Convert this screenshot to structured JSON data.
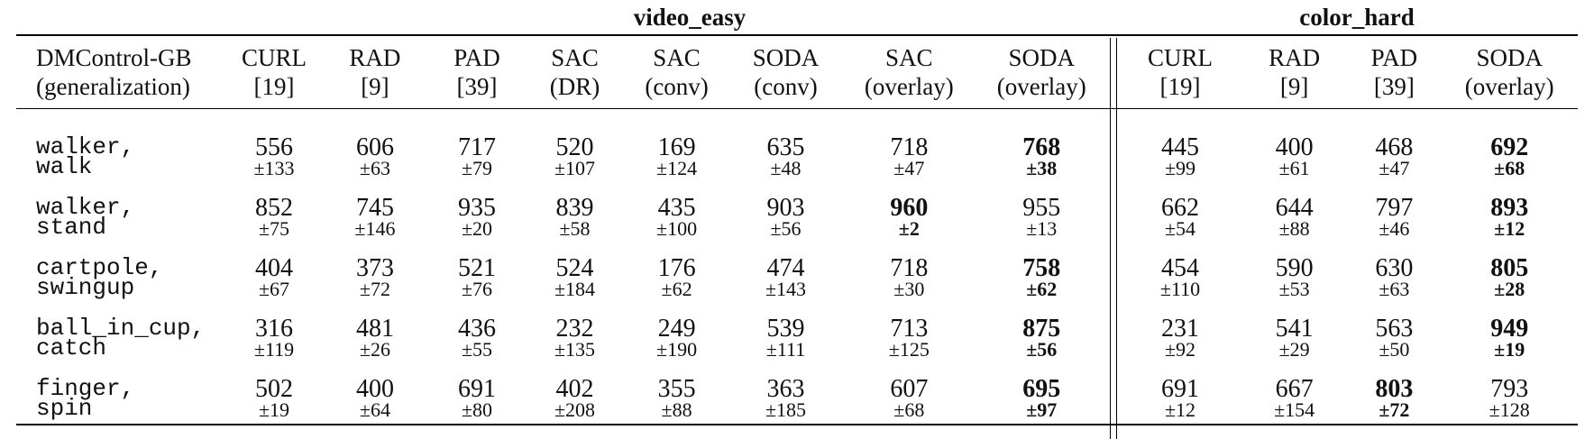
{
  "groups": {
    "video_easy": "video_easy",
    "color_hard": "color_hard"
  },
  "header": {
    "first_line1": "DMControl-GB",
    "first_line2": "(generalization)",
    "cols": [
      {
        "l1": "CURL",
        "l2": "[19]"
      },
      {
        "l1": "RAD",
        "l2": "[9]"
      },
      {
        "l1": "PAD",
        "l2": "[39]"
      },
      {
        "l1": "SAC",
        "l2": "(DR)"
      },
      {
        "l1": "SAC",
        "l2": "(conv)"
      },
      {
        "l1": "SODA",
        "l2": "(conv)"
      },
      {
        "l1": "SAC",
        "l2": "(overlay)"
      },
      {
        "l1": "SODA",
        "l2": "(overlay)"
      },
      {
        "l1": "CURL",
        "l2": "[19]"
      },
      {
        "l1": "RAD",
        "l2": "[9]"
      },
      {
        "l1": "PAD",
        "l2": "[39]"
      },
      {
        "l1": "SODA",
        "l2": "(overlay)"
      }
    ]
  },
  "rows": [
    {
      "task1": "walker,",
      "task2": "walk",
      "cells": [
        {
          "m": "556",
          "s": "±133"
        },
        {
          "m": "606",
          "s": "±63"
        },
        {
          "m": "717",
          "s": "±79"
        },
        {
          "m": "520",
          "s": "±107"
        },
        {
          "m": "169",
          "s": "±124"
        },
        {
          "m": "635",
          "s": "±48"
        },
        {
          "m": "718",
          "s": "±47"
        },
        {
          "m": "768",
          "s": "±38",
          "best": true
        },
        {
          "m": "445",
          "s": "±99"
        },
        {
          "m": "400",
          "s": "±61"
        },
        {
          "m": "468",
          "s": "±47"
        },
        {
          "m": "692",
          "s": "±68",
          "best": true
        }
      ]
    },
    {
      "task1": "walker,",
      "task2": "stand",
      "cells": [
        {
          "m": "852",
          "s": "±75"
        },
        {
          "m": "745",
          "s": "±146"
        },
        {
          "m": "935",
          "s": "±20"
        },
        {
          "m": "839",
          "s": "±58"
        },
        {
          "m": "435",
          "s": "±100"
        },
        {
          "m": "903",
          "s": "±56"
        },
        {
          "m": "960",
          "s": "±2",
          "best": true
        },
        {
          "m": "955",
          "s": "±13"
        },
        {
          "m": "662",
          "s": "±54"
        },
        {
          "m": "644",
          "s": "±88"
        },
        {
          "m": "797",
          "s": "±46"
        },
        {
          "m": "893",
          "s": "±12",
          "best": true
        }
      ]
    },
    {
      "task1": "cartpole,",
      "task2": "swingup",
      "cells": [
        {
          "m": "404",
          "s": "±67"
        },
        {
          "m": "373",
          "s": "±72"
        },
        {
          "m": "521",
          "s": "±76"
        },
        {
          "m": "524",
          "s": "±184"
        },
        {
          "m": "176",
          "s": "±62"
        },
        {
          "m": "474",
          "s": "±143"
        },
        {
          "m": "718",
          "s": "±30"
        },
        {
          "m": "758",
          "s": "±62",
          "best": true
        },
        {
          "m": "454",
          "s": "±110"
        },
        {
          "m": "590",
          "s": "±53"
        },
        {
          "m": "630",
          "s": "±63"
        },
        {
          "m": "805",
          "s": "±28",
          "best": true
        }
      ]
    },
    {
      "task1": "ball_in_cup,",
      "task2": "catch",
      "cells": [
        {
          "m": "316",
          "s": "±119"
        },
        {
          "m": "481",
          "s": "±26"
        },
        {
          "m": "436",
          "s": "±55"
        },
        {
          "m": "232",
          "s": "±135"
        },
        {
          "m": "249",
          "s": "±190"
        },
        {
          "m": "539",
          "s": "±111"
        },
        {
          "m": "713",
          "s": "±125"
        },
        {
          "m": "875",
          "s": "±56",
          "best": true
        },
        {
          "m": "231",
          "s": "±92"
        },
        {
          "m": "541",
          "s": "±29"
        },
        {
          "m": "563",
          "s": "±50"
        },
        {
          "m": "949",
          "s": "±19",
          "best": true
        }
      ]
    },
    {
      "task1": "finger,",
      "task2": "spin",
      "cells": [
        {
          "m": "502",
          "s": "±19"
        },
        {
          "m": "400",
          "s": "±64"
        },
        {
          "m": "691",
          "s": "±80"
        },
        {
          "m": "402",
          "s": "±208"
        },
        {
          "m": "355",
          "s": "±88"
        },
        {
          "m": "363",
          "s": "±185"
        },
        {
          "m": "607",
          "s": "±68"
        },
        {
          "m": "695",
          "s": "±97",
          "best": true
        },
        {
          "m": "691",
          "s": "±12"
        },
        {
          "m": "667",
          "s": "±154"
        },
        {
          "m": "803",
          "s": "±72",
          "best": true
        },
        {
          "m": "793",
          "s": "±128"
        }
      ]
    }
  ]
}
